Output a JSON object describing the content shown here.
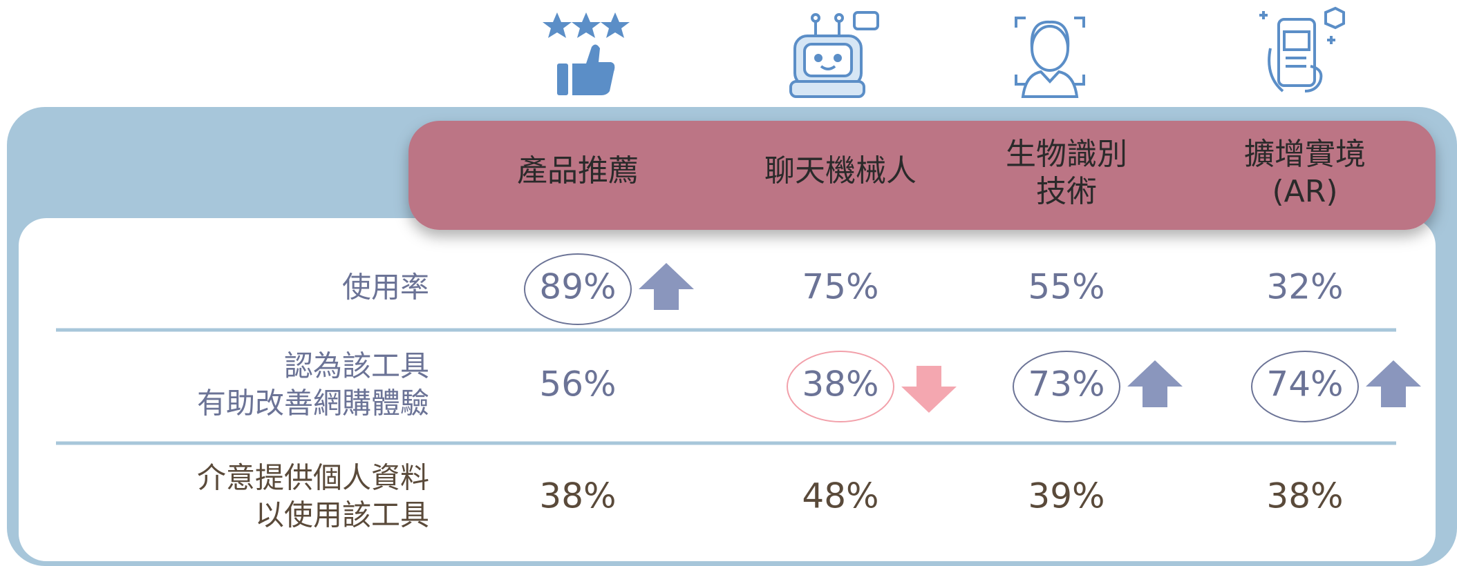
{
  "table": {
    "columns": [
      {
        "lines": [
          "產品推薦"
        ]
      },
      {
        "lines": [
          "聊天機械人"
        ]
      },
      {
        "lines": [
          "生物識別",
          "技術"
        ]
      },
      {
        "lines": [
          "擴增實境",
          "(AR)"
        ]
      }
    ],
    "rows": [
      {
        "label": [
          "使用率"
        ],
        "tone": "blue",
        "cells": [
          {
            "text": "89%",
            "trend": "up"
          },
          {
            "text": "75%"
          },
          {
            "text": "55%"
          },
          {
            "text": "32%"
          }
        ]
      },
      {
        "label": [
          "認為該工具",
          "有助改善網購體驗"
        ],
        "tone": "blue",
        "cells": [
          {
            "text": "56%"
          },
          {
            "text": "38%",
            "trend": "down"
          },
          {
            "text": "73%",
            "trend": "up"
          },
          {
            "text": "74%",
            "trend": "up"
          }
        ]
      },
      {
        "label": [
          "介意提供個人資料",
          "以使用該工具"
        ],
        "tone": "brown",
        "cells": [
          {
            "text": "38%"
          },
          {
            "text": "48%"
          },
          {
            "text": "39%"
          },
          {
            "text": "38%"
          }
        ]
      }
    ]
  }
}
